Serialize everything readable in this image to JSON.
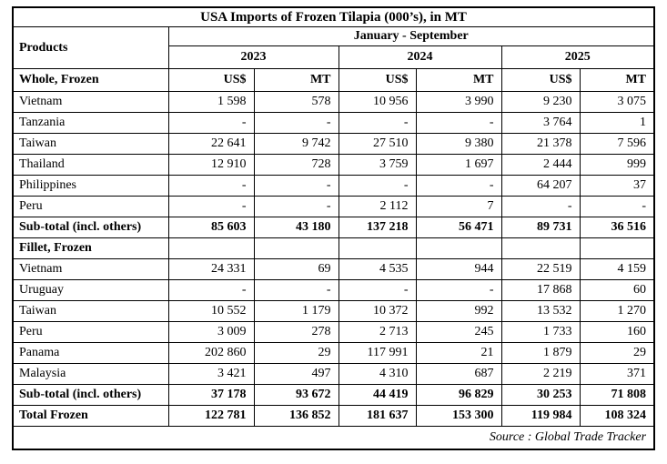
{
  "table": {
    "title": "USA Imports of Frozen Tilapia (000’s), in MT",
    "period": "January - September",
    "products_label": "Products",
    "years": [
      "2023",
      "2024",
      "2025"
    ],
    "unit_headers": [
      "US$",
      "MT"
    ],
    "sections": [
      {
        "label": "Whole, Frozen",
        "rows": [
          {
            "label": "Vietnam",
            "values": [
              "1 598",
              "578",
              "10 956",
              "3 990",
              "9 230",
              "3 075"
            ]
          },
          {
            "label": "Tanzania",
            "values": [
              "-",
              "-",
              "-",
              "-",
              "3 764",
              "1"
            ]
          },
          {
            "label": "Taiwan",
            "values": [
              "22 641",
              "9 742",
              "27 510",
              "9 380",
              "21 378",
              "7 596"
            ]
          },
          {
            "label": "Thailand",
            "values": [
              "12 910",
              "728",
              "3 759",
              "1 697",
              "2 444",
              "999"
            ]
          },
          {
            "label": "Philippines",
            "values": [
              "-",
              "-",
              "-",
              "-",
              "64 207",
              "37"
            ]
          },
          {
            "label": "Peru",
            "values": [
              "-",
              "-",
              "2 112",
              "7",
              "-",
              "-"
            ]
          }
        ],
        "subtotal": {
          "label": "Sub-total (incl. others)",
          "values": [
            "85 603",
            "43 180",
            "137 218",
            "56 471",
            "89 731",
            "36 516"
          ]
        }
      },
      {
        "label": "Fillet, Frozen",
        "rows": [
          {
            "label": "Vietnam",
            "values": [
              "24 331",
              "69",
              "4 535",
              "944",
              "22 519",
              "4 159"
            ]
          },
          {
            "label": "Uruguay",
            "values": [
              "-",
              "-",
              "-",
              "-",
              "17 868",
              "60"
            ]
          },
          {
            "label": "Taiwan",
            "values": [
              "10 552",
              "1 179",
              "10 372",
              "992",
              "13 532",
              "1 270"
            ]
          },
          {
            "label": "Peru",
            "values": [
              "3 009",
              "278",
              "2 713",
              "245",
              "1 733",
              "160"
            ]
          },
          {
            "label": "Panama",
            "values": [
              "202 860",
              "29",
              "117 991",
              "21",
              "1 879",
              "29"
            ]
          },
          {
            "label": "Malaysia",
            "values": [
              "3 421",
              "497",
              "4 310",
              "687",
              "2 219",
              "371"
            ]
          }
        ],
        "subtotal": {
          "label": "Sub-total (incl. others)",
          "values": [
            "37 178",
            "93 672",
            "44 419",
            "96 829",
            "30 253",
            "71 808"
          ]
        }
      }
    ],
    "total": {
      "label": "Total Frozen",
      "values": [
        "122 781",
        "136 852",
        "181 637",
        "153 300",
        "119 984",
        "108 324"
      ]
    },
    "source": "Source : Global Trade Tracker"
  }
}
